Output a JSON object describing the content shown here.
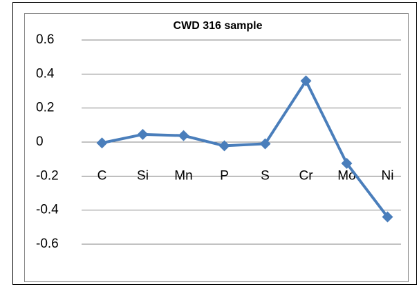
{
  "chart_data": {
    "type": "line",
    "title": "CWD 316 sample",
    "categories": [
      "C",
      "Si",
      "Mn",
      "P",
      "S",
      "Cr",
      "Mo",
      "Ni"
    ],
    "series": [
      {
        "name": "CWD 316 sample",
        "color": "#4a7ebb",
        "values": [
          -0.005,
          0.045,
          0.038,
          -0.022,
          -0.01,
          0.36,
          -0.125,
          -0.44
        ]
      }
    ],
    "ylim": [
      -0.6,
      0.6
    ],
    "yticks": [
      0.6,
      0.4,
      0.2,
      0,
      -0.2,
      -0.4,
      -0.6
    ],
    "grid": true,
    "legend": false
  }
}
